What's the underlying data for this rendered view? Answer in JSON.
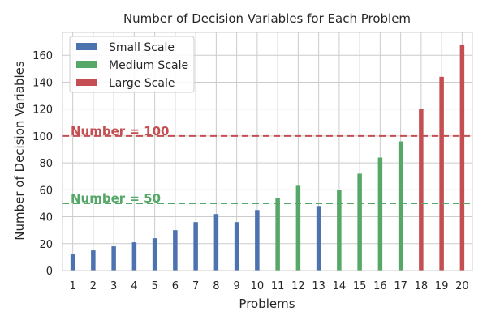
{
  "chart_data": {
    "type": "bar",
    "title": "Number of Decision Variables for Each Problem",
    "xlabel": "Problems",
    "ylabel": "Number of Decision Variables",
    "categories": [
      "1",
      "2",
      "3",
      "4",
      "5",
      "6",
      "7",
      "8",
      "9",
      "10",
      "11",
      "12",
      "13",
      "14",
      "15",
      "16",
      "17",
      "18",
      "19",
      "20"
    ],
    "series": [
      {
        "name": "Small Scale",
        "color": "#4c72b0",
        "values": [
          12,
          15,
          18,
          21,
          24,
          30,
          36,
          42,
          36,
          45,
          null,
          null,
          48,
          null,
          null,
          null,
          null,
          null,
          null,
          null
        ]
      },
      {
        "name": "Medium Scale",
        "color": "#55a868",
        "values": [
          null,
          null,
          null,
          null,
          null,
          null,
          null,
          null,
          null,
          null,
          54,
          63,
          null,
          60,
          72,
          84,
          96,
          null,
          null,
          null
        ]
      },
      {
        "name": "Large Scale",
        "color": "#c44e52",
        "values": [
          null,
          null,
          null,
          null,
          null,
          null,
          null,
          null,
          null,
          null,
          null,
          null,
          null,
          null,
          null,
          null,
          null,
          120,
          144,
          168
        ]
      }
    ],
    "ylim": [
      0,
      177
    ],
    "yticks": [
      0,
      20,
      40,
      60,
      80,
      100,
      120,
      140,
      160
    ],
    "grid": true,
    "legend_position": "top-left",
    "reference_lines": [
      {
        "value": 100,
        "label": "Number = 100",
        "color": "#c44e52"
      },
      {
        "value": 50,
        "label": "Number = 50",
        "color": "#55a868"
      }
    ]
  }
}
